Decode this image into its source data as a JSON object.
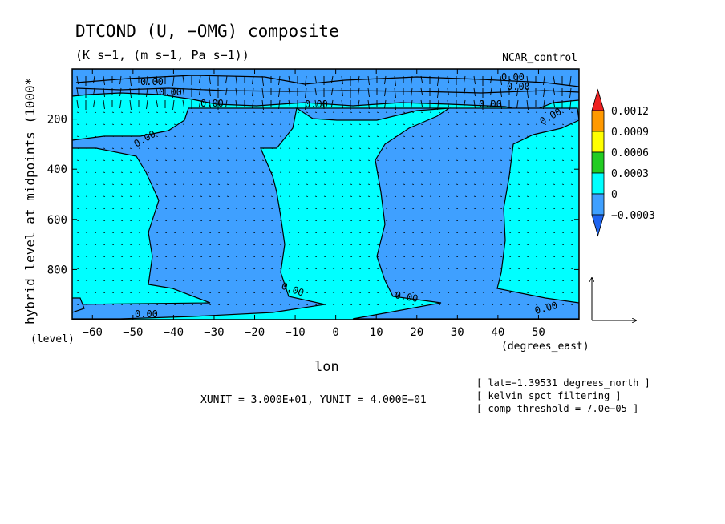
{
  "chart_data": {
    "type": "contour",
    "title": "DTCOND (U, −OMG) composite",
    "units": "(K s−1, (m s−1, Pa s−1))",
    "case_label": "NCAR_control",
    "xlabel": "lon",
    "xunits": "(degrees_east)",
    "ylabel": "hybrid level at midpoints (1000*",
    "yunits": "(level)",
    "xlim": [
      -65,
      60
    ],
    "ylim": [
      1000,
      0
    ],
    "x_ticks": [
      -60,
      -50,
      -40,
      -30,
      -20,
      -10,
      0,
      10,
      20,
      30,
      40,
      50
    ],
    "x_tick_labels": [
      "−60",
      "−50",
      "−40",
      "−30",
      "−20",
      "−10",
      "0",
      "10",
      "20",
      "30",
      "40",
      "50"
    ],
    "y_ticks": [
      200,
      400,
      600,
      800
    ],
    "y_tick_labels": [
      "200",
      "400",
      "600",
      "800"
    ],
    "contour_labels": [
      "0.00",
      "0.00",
      "0.00",
      "0.00",
      "0.00",
      "0.00",
      "0.00",
      "0.00",
      "0.00",
      "0.00",
      "0.00",
      "0.00"
    ],
    "colorbar": {
      "levels": [
        -0.0003,
        0,
        0.0003,
        0.0006,
        0.0009,
        0.0012
      ],
      "labels": [
        "−0.0003",
        "0",
        "0.0003",
        "0.0006",
        "0.0009",
        "0.0012"
      ],
      "colors": [
        "#1e64f0",
        "#3fa0ff",
        "#00ffff",
        "#22cc22",
        "#ffff00",
        "#ff9900",
        "#ee2222"
      ]
    },
    "vector_units": "XUNIT = 3.000E+01, YUNIT = 4.000E−01",
    "notes": [
      "[ lat=−1.39531 degrees_north ]",
      "[ kelvin spct filtering ]",
      "[ comp threshold = 7.0e−05 ]"
    ],
    "negative_band_edges": {
      "lon": [
        -46,
        -13,
        13,
        44
      ],
      "level": [
        170,
        300,
        500,
        700,
        900,
        960
      ]
    }
  }
}
